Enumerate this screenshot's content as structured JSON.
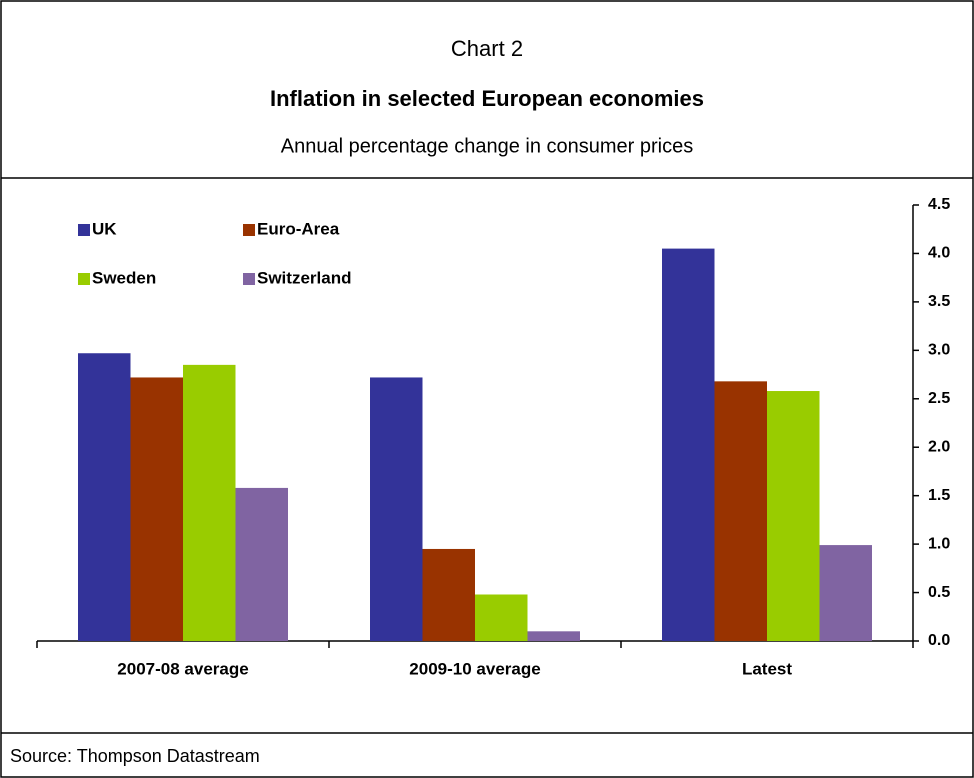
{
  "chart_data": {
    "type": "bar",
    "label": "Chart 2",
    "title": "Inflation in selected European economies",
    "subtitle": "Annual percentage change in consumer prices",
    "source": "Source: Thompson Datastream",
    "categories": [
      "2007-08 average",
      "2009-10 average",
      "Latest"
    ],
    "series": [
      {
        "name": "UK",
        "color": "#333399",
        "values": [
          2.97,
          2.72,
          4.05
        ]
      },
      {
        "name": "Euro-Area",
        "color": "#993300",
        "values": [
          2.72,
          0.95,
          2.68
        ]
      },
      {
        "name": "Sweden",
        "color": "#99cc00",
        "values": [
          2.85,
          0.48,
          2.58
        ]
      },
      {
        "name": "Switzerland",
        "color": "#8064a2",
        "values": [
          1.58,
          0.1,
          0.99
        ]
      }
    ],
    "ylim": [
      0,
      4.5
    ],
    "yticks": [
      {
        "value": 0,
        "label": "0.0"
      },
      0.5,
      {
        "value": 1,
        "label": "1.0"
      },
      1.5,
      {
        "value": 2,
        "label": "2.0"
      },
      2.5,
      {
        "value": 3,
        "label": "3.0"
      },
      3.5,
      {
        "value": 4,
        "label": "4.0"
      },
      4.5
    ],
    "y_axis_side": "right",
    "grid": false,
    "legend": "top-left"
  }
}
